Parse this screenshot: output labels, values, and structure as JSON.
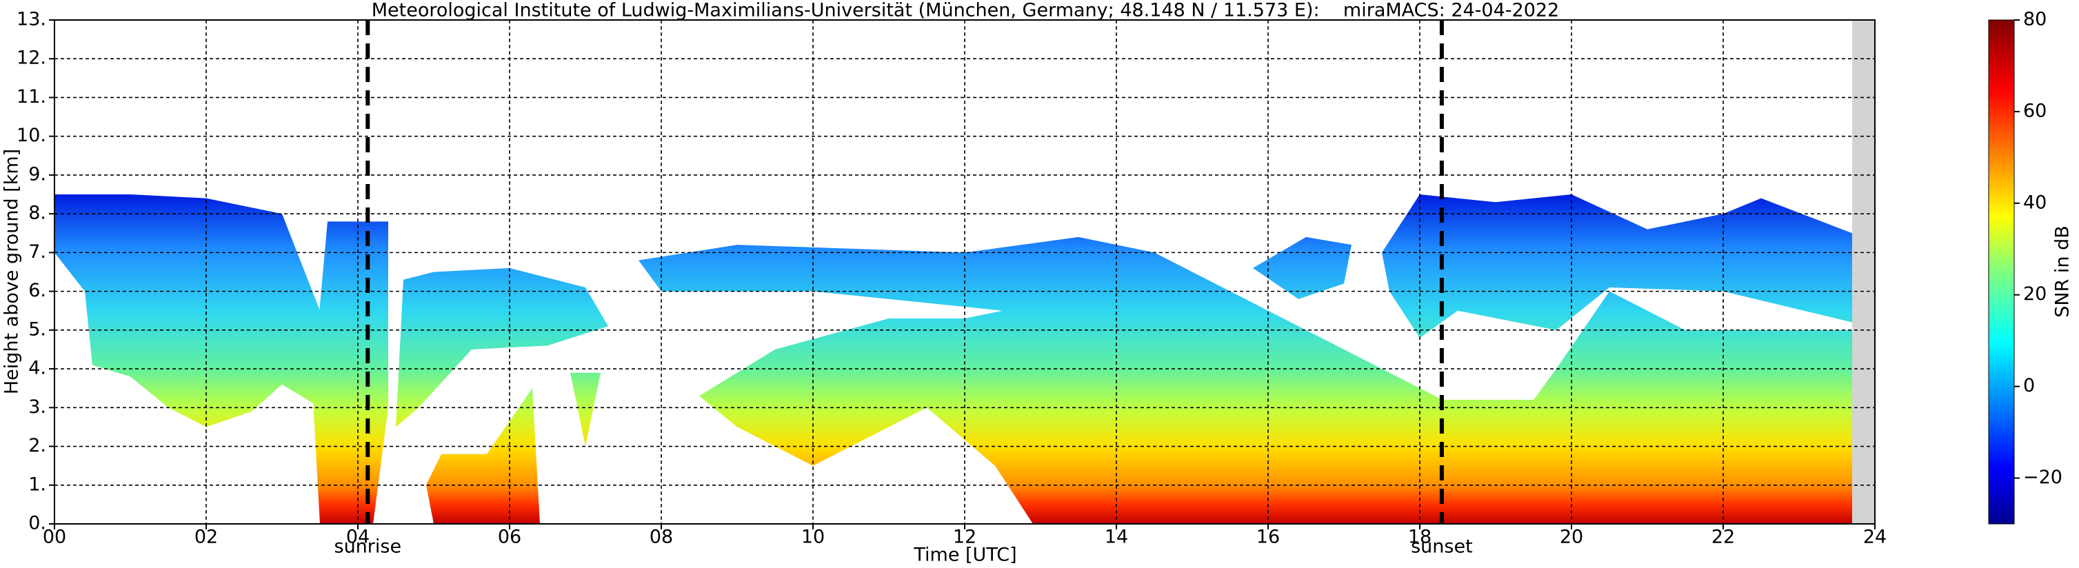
{
  "chart_data": {
    "type": "heatmap",
    "title": "Meteorological Institute of Ludwig-Maximilians-Universität (München, Germany; 48.148 N / 11.573 E):    miraMACS: 24-04-2022",
    "xlabel": "Time [UTC]",
    "ylabel": "Height above ground [km]",
    "xlim": [
      0,
      24
    ],
    "ylim": [
      0,
      13
    ],
    "xticks": [
      {
        "value": 0,
        "label": "00"
      },
      {
        "value": 2,
        "label": "02"
      },
      {
        "value": 4,
        "label": "04"
      },
      {
        "value": 6,
        "label": "06"
      },
      {
        "value": 8,
        "label": "08"
      },
      10,
      12,
      14,
      16,
      18,
      20,
      22,
      24
    ],
    "yticks": [
      {
        "value": 0,
        "label": "0."
      },
      {
        "value": 1,
        "label": "1."
      },
      {
        "value": 2,
        "label": "2."
      },
      {
        "value": 3,
        "label": "3."
      },
      {
        "value": 4,
        "label": "4."
      },
      {
        "value": 5,
        "label": "5."
      },
      {
        "value": 6,
        "label": "6."
      },
      {
        "value": 7,
        "label": "7."
      },
      {
        "value": 8,
        "label": "8."
      },
      {
        "value": 9,
        "label": "9."
      },
      {
        "value": 10,
        "label": "10."
      },
      {
        "value": 11,
        "label": "11."
      },
      {
        "value": 12,
        "label": "12."
      },
      {
        "value": 13,
        "label": "13."
      }
    ],
    "grid": true,
    "annotations": [
      {
        "text": "sunrise",
        "x": 4.13
      },
      {
        "text": "sunset",
        "x": 18.29
      }
    ],
    "colorbar": {
      "label": "SNR in dB",
      "lim": [
        -30,
        80
      ],
      "ticks": [
        {
          "value": -20,
          "label": "−20"
        },
        0,
        20,
        40,
        60,
        80
      ]
    }
  }
}
